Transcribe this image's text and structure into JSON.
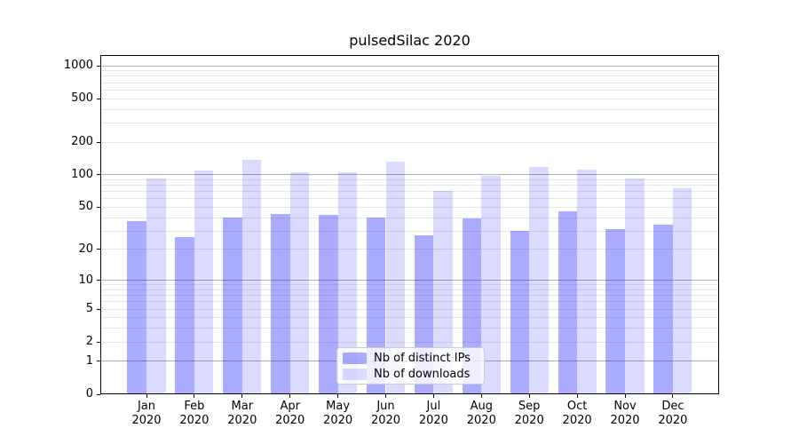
{
  "chart_data": {
    "type": "bar",
    "title": "pulsedSilac 2020",
    "x_categories": [
      "Jan",
      "Feb",
      "Mar",
      "Apr",
      "May",
      "Jun",
      "Jul",
      "Aug",
      "Sep",
      "Oct",
      "Nov",
      "Dec"
    ],
    "x_year": "2020",
    "series": [
      {
        "name": "Nb of distinct IPs",
        "color": "rgba(0,0,255,0.33)",
        "values": [
          37,
          26,
          40,
          43,
          42,
          40,
          27,
          39,
          30,
          45,
          31,
          34
        ]
      },
      {
        "name": "Nb of downloads",
        "color": "rgba(0,0,255,0.14)",
        "values": [
          92,
          109,
          136,
          104,
          104,
          132,
          70,
          97,
          118,
          111,
          92,
          75
        ]
      }
    ],
    "y_scale": "log1p",
    "y_ticks": [
      0,
      1,
      2,
      5,
      10,
      20,
      50,
      100,
      200,
      500,
      1000
    ],
    "ylim": [
      0,
      1240
    ],
    "grid": {
      "major_lines": [
        1,
        10,
        100,
        1000
      ],
      "major_color": "#b0b0b0",
      "minor_color": "#e7e7e7"
    },
    "legend_position": "lower center",
    "axis_color": "#000000",
    "background_color": "#ffffff"
  }
}
